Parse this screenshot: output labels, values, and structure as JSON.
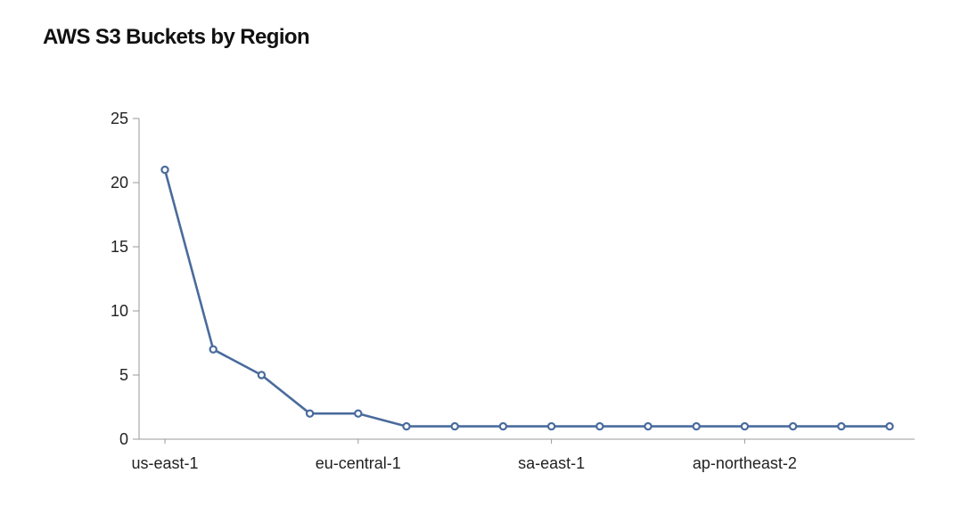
{
  "chart_data": {
    "type": "line",
    "title": "AWS S3 Buckets by Region",
    "xlabel": "",
    "ylabel": "",
    "x_tick_labels": [
      "us-east-1",
      "eu-central-1",
      "sa-east-1",
      "ap-northeast-2"
    ],
    "x_tick_indices": [
      0,
      4,
      8,
      12
    ],
    "ylim": [
      0,
      25
    ],
    "y_ticks": [
      0,
      5,
      10,
      15,
      20,
      25
    ],
    "grid": false,
    "legend": "none",
    "series": [
      {
        "color": "#4a6b9c",
        "values": [
          21,
          7,
          5,
          2,
          2,
          1,
          1,
          1,
          1,
          1,
          1,
          1,
          1,
          1,
          1,
          1
        ]
      }
    ]
  }
}
